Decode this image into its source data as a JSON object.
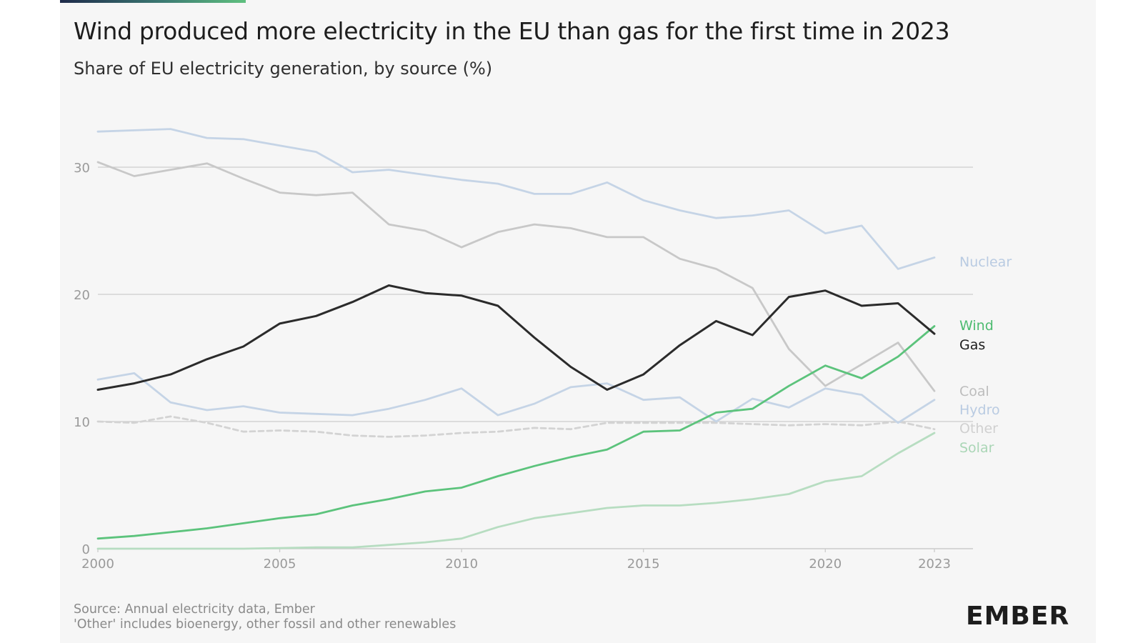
{
  "header": {
    "title": "Wind produced more electricity in the EU than gas for the first time in 2023",
    "subtitle": "Share of EU electricity generation, by source (%)"
  },
  "footer": {
    "source": "Source: Annual electricity data, Ember",
    "note": "'Other' includes bioenergy, other fossil and other renewables"
  },
  "brand": {
    "logo_text": "EMBER"
  },
  "colors": {
    "nuclear": "#c5d4e6",
    "coal": "#c8c8c8",
    "gas": "#2b2b2b",
    "wind": "#5cc37c",
    "hydro": "#c5d4e6",
    "other": "#d3d3d3",
    "solar": "#b7ddc1",
    "grid": "#cccccc",
    "tick": "#9a9a9a"
  },
  "chart_data": {
    "type": "line",
    "title": "Wind produced more electricity in the EU than gas for the first time in 2023",
    "subtitle": "Share of EU electricity generation, by source (%)",
    "xlabel": "",
    "ylabel": "",
    "xlim": [
      2000,
      2023
    ],
    "ylim": [
      0,
      34
    ],
    "x_ticks": [
      2000,
      2005,
      2010,
      2015,
      2020,
      2023
    ],
    "y_ticks": [
      0,
      10,
      20,
      30
    ],
    "grid": true,
    "legend": "direct labels at right end of lines",
    "x": [
      2000,
      2001,
      2002,
      2003,
      2004,
      2005,
      2006,
      2007,
      2008,
      2009,
      2010,
      2011,
      2012,
      2013,
      2014,
      2015,
      2016,
      2017,
      2018,
      2019,
      2020,
      2021,
      2022,
      2023
    ],
    "series": [
      {
        "name": "Nuclear",
        "key": "nuclear",
        "dashed": false,
        "values": [
          32.8,
          32.9,
          33.0,
          32.3,
          32.2,
          31.7,
          31.2,
          29.6,
          29.8,
          29.4,
          29.0,
          28.7,
          27.9,
          27.9,
          28.8,
          27.4,
          26.6,
          26.0,
          26.2,
          26.6,
          24.8,
          25.4,
          22.0,
          22.9
        ]
      },
      {
        "name": "Coal",
        "key": "coal",
        "dashed": false,
        "values": [
          30.4,
          29.3,
          29.8,
          30.3,
          29.1,
          28.0,
          27.8,
          28.0,
          25.5,
          25.0,
          23.7,
          24.9,
          25.5,
          25.2,
          24.5,
          24.5,
          22.8,
          22.0,
          20.5,
          15.7,
          12.8,
          14.5,
          16.2,
          12.4
        ]
      },
      {
        "name": "Gas",
        "key": "gas",
        "dashed": false,
        "values": [
          12.5,
          13.0,
          13.7,
          14.9,
          15.9,
          17.7,
          18.3,
          19.4,
          20.7,
          20.1,
          19.9,
          19.1,
          16.6,
          14.3,
          12.5,
          13.7,
          16.0,
          17.9,
          16.8,
          19.8,
          20.3,
          19.1,
          19.3,
          16.9
        ]
      },
      {
        "name": "Wind",
        "key": "wind",
        "dashed": false,
        "values": [
          0.8,
          1.0,
          1.3,
          1.6,
          2.0,
          2.4,
          2.7,
          3.4,
          3.9,
          4.5,
          4.8,
          5.7,
          6.5,
          7.2,
          7.8,
          9.2,
          9.3,
          10.7,
          11.0,
          12.8,
          14.4,
          13.4,
          15.1,
          17.5
        ]
      },
      {
        "name": "Hydro",
        "key": "hydro",
        "dashed": false,
        "values": [
          13.3,
          13.8,
          11.5,
          10.9,
          11.2,
          10.7,
          10.6,
          10.5,
          11.0,
          11.7,
          12.6,
          10.5,
          11.4,
          12.7,
          13.0,
          11.7,
          11.9,
          10.0,
          11.8,
          11.1,
          12.6,
          12.1,
          9.9,
          11.7
        ]
      },
      {
        "name": "Other",
        "key": "other",
        "dashed": true,
        "values": [
          10.0,
          9.9,
          10.4,
          9.9,
          9.2,
          9.3,
          9.2,
          8.9,
          8.8,
          8.9,
          9.1,
          9.2,
          9.5,
          9.4,
          9.9,
          9.9,
          9.9,
          9.9,
          9.8,
          9.7,
          9.8,
          9.7,
          10.0,
          9.4
        ]
      },
      {
        "name": "Solar",
        "key": "solar",
        "dashed": false,
        "values": [
          0.0,
          0.0,
          0.0,
          0.0,
          0.0,
          0.05,
          0.1,
          0.1,
          0.3,
          0.5,
          0.8,
          1.7,
          2.4,
          2.8,
          3.2,
          3.4,
          3.4,
          3.6,
          3.9,
          4.3,
          5.3,
          5.7,
          7.5,
          9.1
        ]
      }
    ]
  }
}
